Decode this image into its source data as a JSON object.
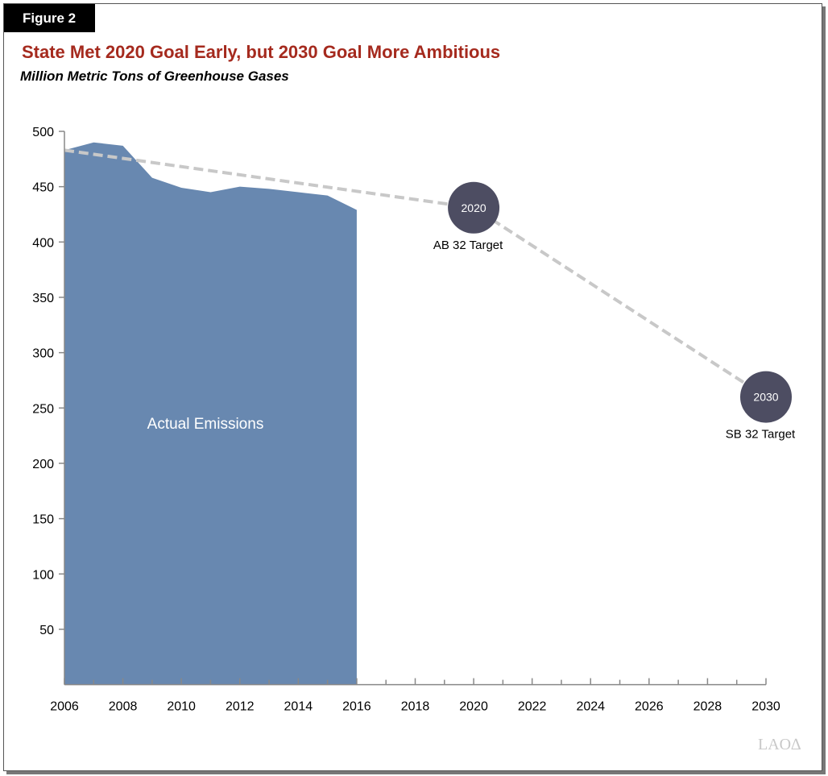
{
  "figure_label": "Figure 2",
  "logo_text": "LAO",
  "colors": {
    "title": "#a52a1e",
    "area": "#6888b0",
    "target_circle": "#4d4d62",
    "dashed_line": "#c8c8c8"
  },
  "chart_data": {
    "type": "area",
    "title": "State Met 2020 Goal Early, but 2030 Goal More Ambitious",
    "subtitle": "Million Metric Tons of Greenhouse Gases",
    "xlabel": "",
    "ylabel": "",
    "xlim": [
      2006,
      2030
    ],
    "ylim": [
      0,
      500
    ],
    "x_ticks": [
      "2006",
      "2008",
      "2010",
      "2012",
      "2014",
      "2016",
      "2018",
      "2020",
      "2022",
      "2024",
      "2026",
      "2028",
      "2030"
    ],
    "y_ticks": [
      "50",
      "100",
      "150",
      "200",
      "250",
      "300",
      "350",
      "400",
      "450",
      "500"
    ],
    "grid": false,
    "series": [
      {
        "name": "Actual Emissions",
        "x": [
          2006,
          2007,
          2008,
          2009,
          2010,
          2011,
          2012,
          2013,
          2014,
          2015,
          2016
        ],
        "values": [
          483,
          490,
          487,
          458,
          449,
          445,
          450,
          448,
          445,
          442,
          429
        ]
      }
    ],
    "target_line": {
      "x": [
        2006,
        2020,
        2030
      ],
      "values": [
        483,
        431,
        260
      ]
    },
    "targets": [
      {
        "year": 2020,
        "value": 431,
        "bubble_label": "2020",
        "label": "AB 32 Target"
      },
      {
        "year": 2030,
        "value": 260,
        "bubble_label": "2030",
        "label": "SB 32 Target"
      }
    ]
  }
}
